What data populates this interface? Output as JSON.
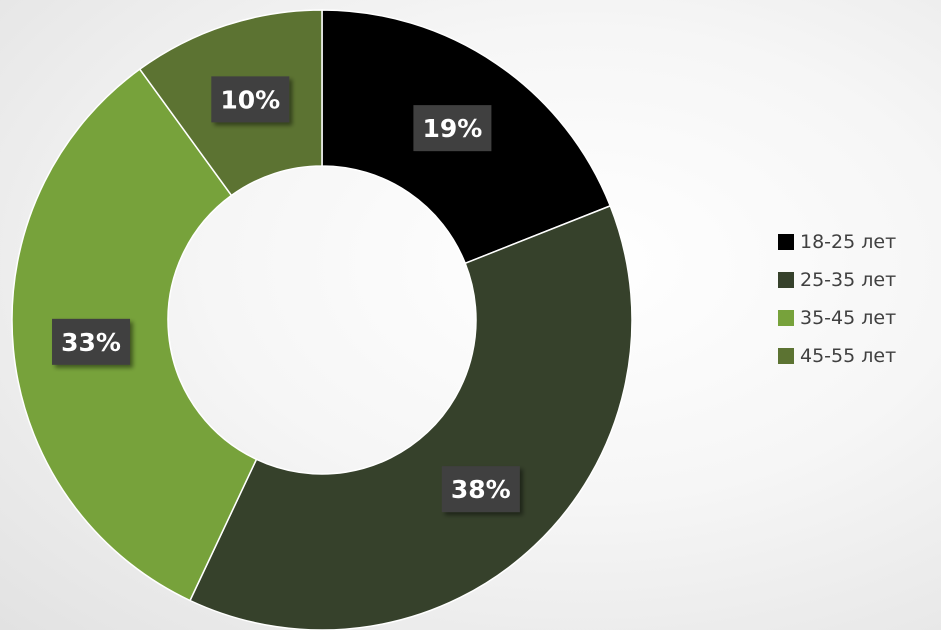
{
  "chart_data": {
    "type": "donut",
    "title": "",
    "categories": [
      "18-25 лет",
      "25-35 лет",
      "35-45 лет",
      "45-55 лет"
    ],
    "values": [
      19,
      38,
      33,
      10
    ],
    "data_labels": [
      "19%",
      "38%",
      "33%",
      "10%"
    ],
    "colors": [
      "#000000",
      "#36412b",
      "#77a23b",
      "#5c7332"
    ],
    "label_background": "#3f3f3f",
    "label_color": "#ffffff",
    "legend_position": "right",
    "start_angle_deg": 0,
    "direction": "clockwise"
  },
  "legend": {
    "items": [
      {
        "label": "18-25 лет",
        "color": "#000000"
      },
      {
        "label": "25-35 лет",
        "color": "#36412b"
      },
      {
        "label": "35-45 лет",
        "color": "#77a23b"
      },
      {
        "label": "45-55 лет",
        "color": "#5c7332"
      }
    ]
  }
}
